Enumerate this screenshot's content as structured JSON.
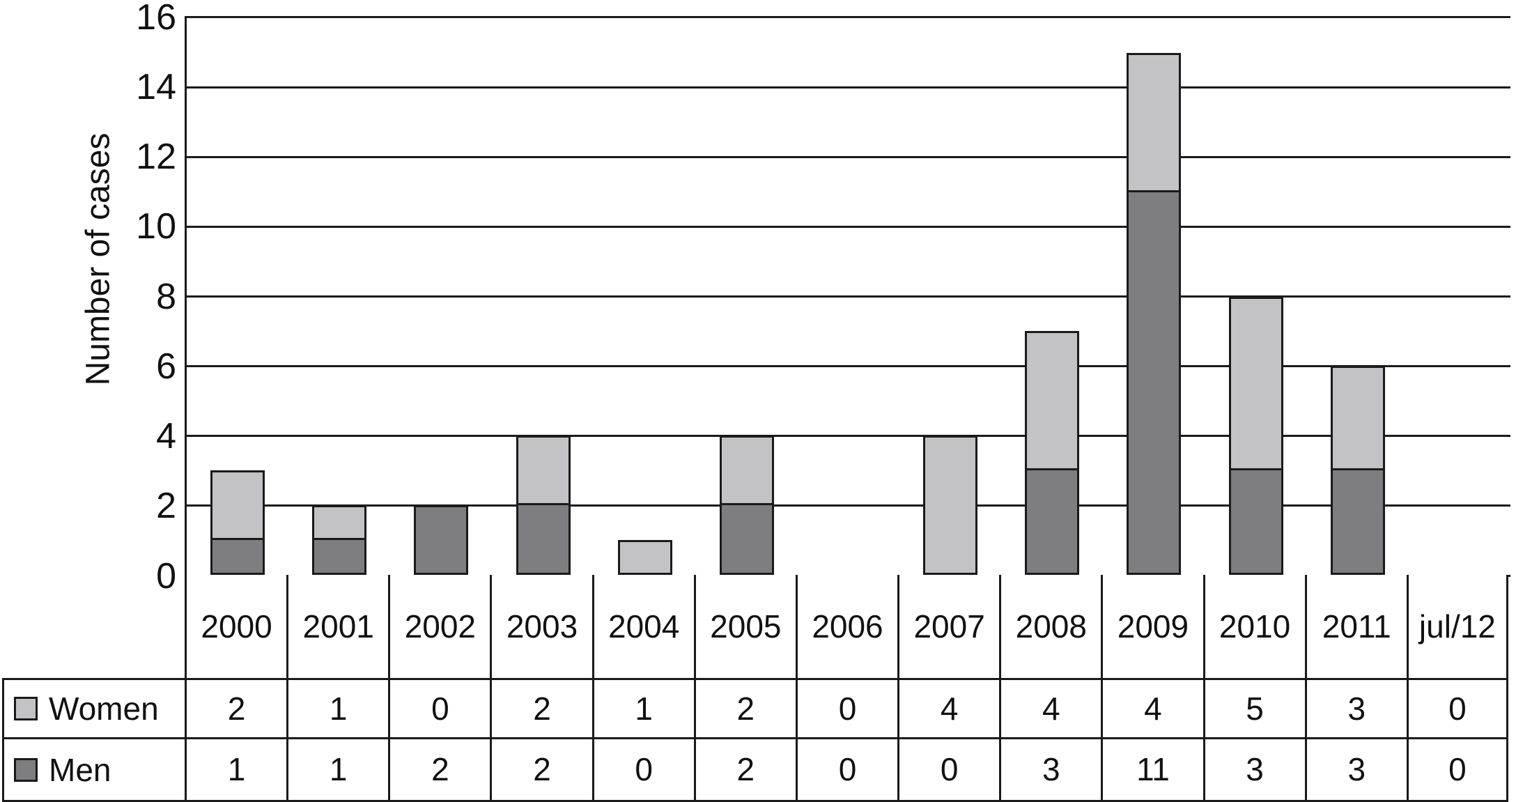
{
  "figure": {
    "background": "#ffffff",
    "line_color": "#1a1a1a",
    "text_color": "#111111"
  },
  "chart_data": {
    "type": "bar",
    "stacked": true,
    "title": "",
    "xlabel": "",
    "ylabel": "Number of cases",
    "ylim": [
      0,
      16
    ],
    "yticks": [
      0,
      2,
      4,
      6,
      8,
      10,
      12,
      14,
      16
    ],
    "grid": true,
    "legend_position": "bottom-left table header column",
    "stack_order": "Men bottom, Women top",
    "categories": [
      "2000",
      "2001",
      "2002",
      "2003",
      "2004",
      "2005",
      "2006",
      "2007",
      "2008",
      "2009",
      "2010",
      "2011",
      "jul/12"
    ],
    "series": [
      {
        "name": "Women",
        "color": "#c3c3c5",
        "values": [
          2,
          1,
          0,
          2,
          1,
          2,
          0,
          4,
          4,
          4,
          5,
          3,
          0
        ]
      },
      {
        "name": "Men",
        "color": "#7e7e81",
        "values": [
          1,
          1,
          2,
          2,
          0,
          2,
          0,
          0,
          3,
          11,
          3,
          3,
          0
        ]
      }
    ]
  }
}
